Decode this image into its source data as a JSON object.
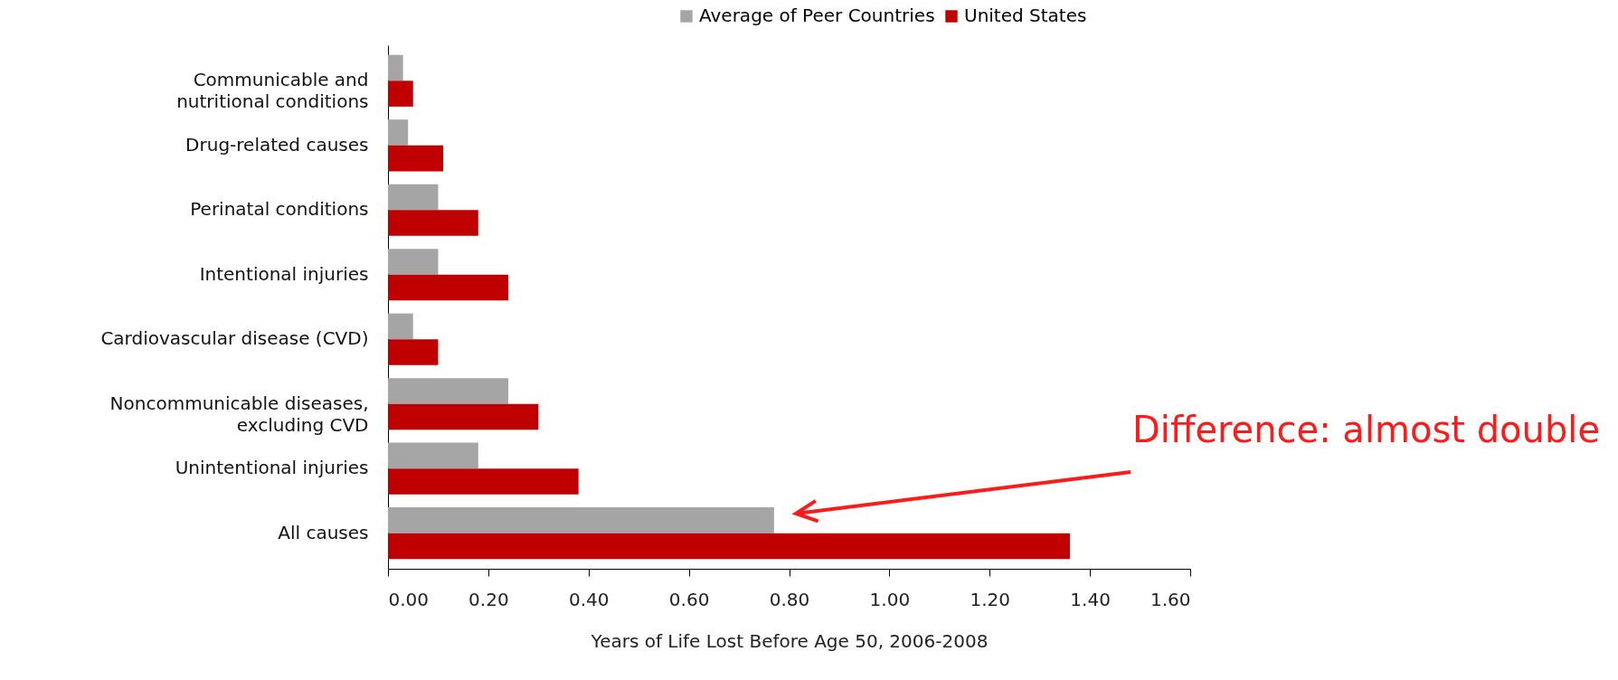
{
  "chart_data": {
    "type": "bar",
    "orientation": "horizontal",
    "categories": [
      "Communicable and\nnutritional conditions",
      "Drug-related causes",
      "Perinatal conditions",
      "Intentional injuries",
      "Cardiovascular disease (CVD)",
      "Noncommunicable diseases,\nexcluding CVD",
      "Unintentional injuries",
      "All causes"
    ],
    "series": [
      {
        "name": "Average of Peer Countries",
        "color": "#a5a5a5",
        "values": [
          0.03,
          0.04,
          0.1,
          0.1,
          0.05,
          0.24,
          0.18,
          0.77
        ]
      },
      {
        "name": "United States",
        "color": "#c00000",
        "values": [
          0.05,
          0.11,
          0.18,
          0.24,
          0.1,
          0.3,
          0.38,
          1.36
        ]
      }
    ],
    "xlabel": "Years of Life Lost Before Age 50, 2006-2008",
    "xlim": [
      0,
      1.6
    ],
    "xticks": [
      {
        "value": 0,
        "label": "0.00"
      },
      {
        "value": 0.2,
        "label": "0.20"
      },
      {
        "value": 0.4,
        "label": "0.40"
      },
      {
        "value": 0.6,
        "label": "0.60"
      },
      {
        "value": 0.8,
        "label": "0.80"
      },
      {
        "value": 1.0,
        "label": "1.00"
      },
      {
        "value": 1.2,
        "label": "1.20"
      },
      {
        "value": 1.4,
        "label": "1.40"
      },
      {
        "value": 1.6,
        "label": "1.60"
      }
    ],
    "legend": "top",
    "annotations": [
      "Difference: almost double"
    ]
  }
}
